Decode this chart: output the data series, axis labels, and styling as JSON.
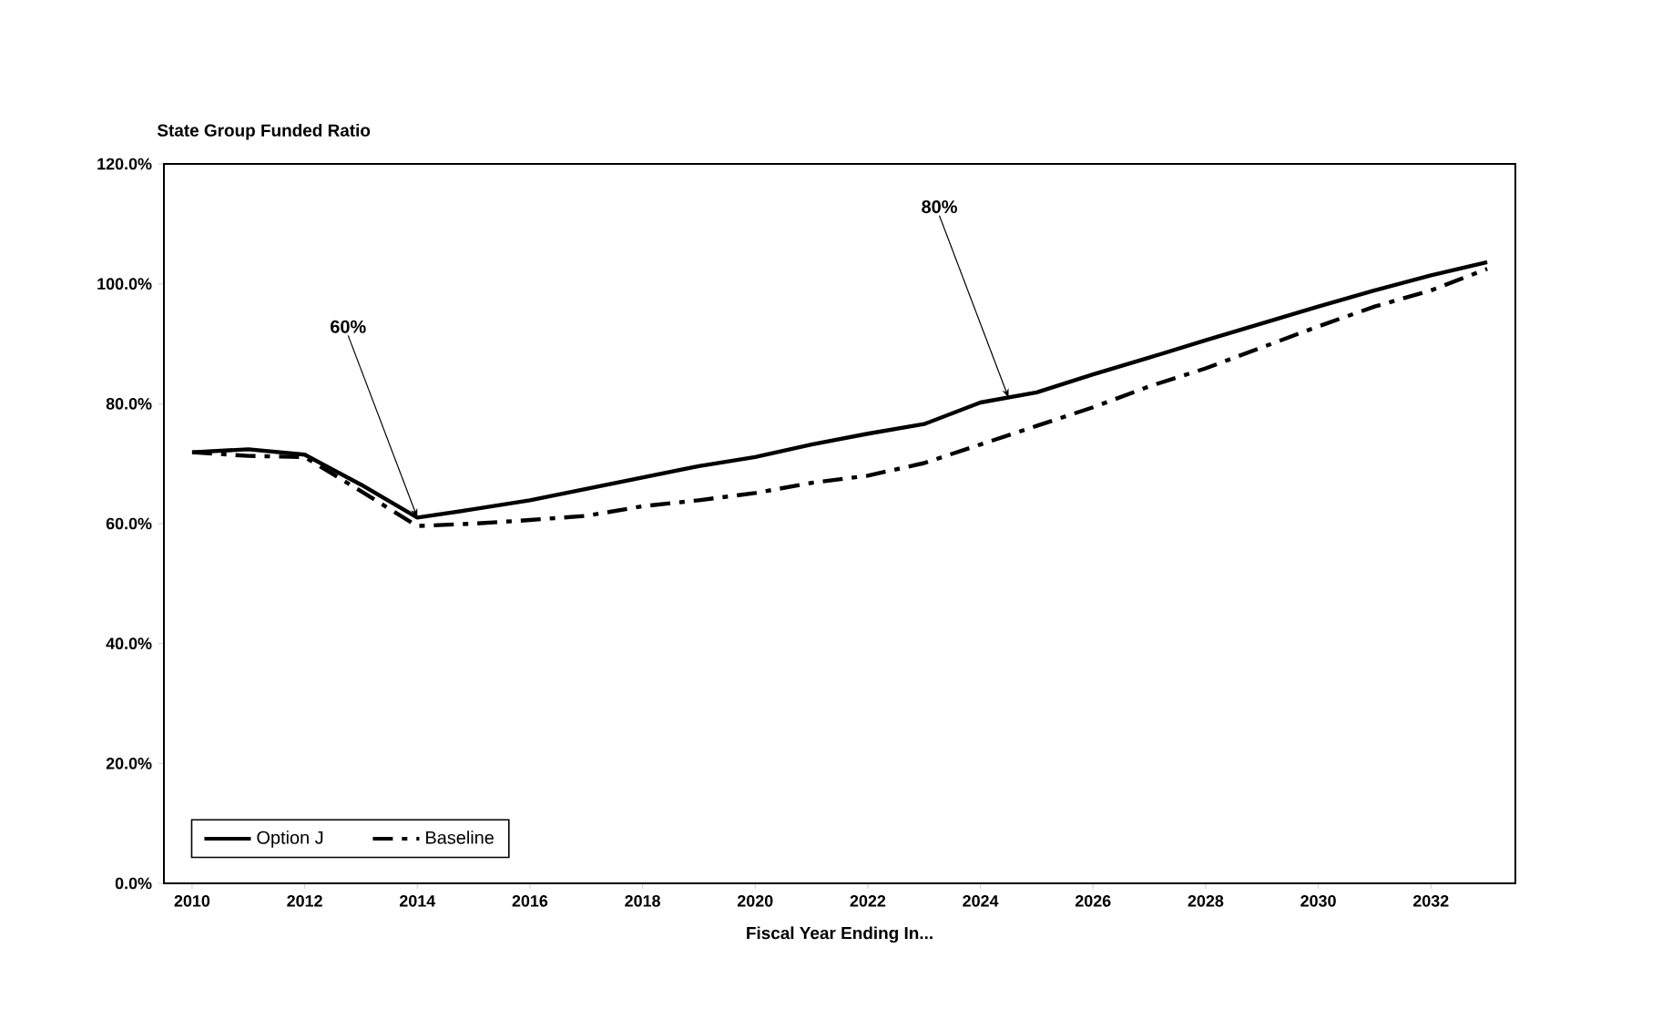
{
  "chart_data": {
    "type": "line",
    "title": "State Group Funded Ratio",
    "xlabel": "Fiscal Year Ending In...",
    "x": [
      2010,
      2011,
      2012,
      2013,
      2014,
      2015,
      2016,
      2017,
      2018,
      2019,
      2020,
      2021,
      2022,
      2023,
      2024,
      2025,
      2026,
      2027,
      2028,
      2029,
      2030,
      2031,
      2032,
      2033
    ],
    "series": [
      {
        "name": "Option J",
        "color": "#000000",
        "line_style": "solid",
        "values": [
          71.9,
          72.4,
          71.5,
          66.5,
          61.0,
          62.4,
          63.9,
          65.8,
          67.7,
          69.6,
          71.1,
          73.2,
          75.0,
          76.6,
          80.2,
          81.9,
          84.9,
          87.7,
          90.6,
          93.4,
          96.2,
          98.9,
          101.4,
          103.6
        ]
      },
      {
        "name": "Baseline",
        "color": "#000000",
        "line_style": "dashed",
        "values": [
          71.9,
          71.3,
          71.1,
          65.4,
          59.6,
          60.0,
          60.6,
          61.3,
          62.9,
          63.9,
          65.1,
          66.8,
          68.0,
          70.1,
          73.2,
          76.3,
          79.4,
          82.9,
          85.9,
          89.4,
          92.9,
          96.2,
          98.9,
          102.5
        ]
      }
    ],
    "xlim": [
      2009.5,
      2033.5
    ],
    "xticks": [
      2010,
      2012,
      2014,
      2016,
      2018,
      2020,
      2022,
      2024,
      2026,
      2028,
      2030,
      2032
    ],
    "ylim": [
      0,
      120
    ],
    "yticks": [
      {
        "value": 0,
        "label": "0.0%"
      },
      {
        "value": 20,
        "label": "20.0%"
      },
      {
        "value": 40,
        "label": "40.0%"
      },
      {
        "value": 60,
        "label": "60.0%"
      },
      {
        "value": 80,
        "label": "80.0%"
      },
      {
        "value": 100,
        "label": "100.0%"
      },
      {
        "value": 120,
        "label": "120.0%"
      }
    ],
    "annotations": [
      {
        "text": "60%",
        "x": 2014,
        "y": 61
      },
      {
        "text": "80%",
        "x": 2024.5,
        "y": 81
      }
    ],
    "grid": false,
    "legend": "bottom left",
    "marker": "none"
  }
}
